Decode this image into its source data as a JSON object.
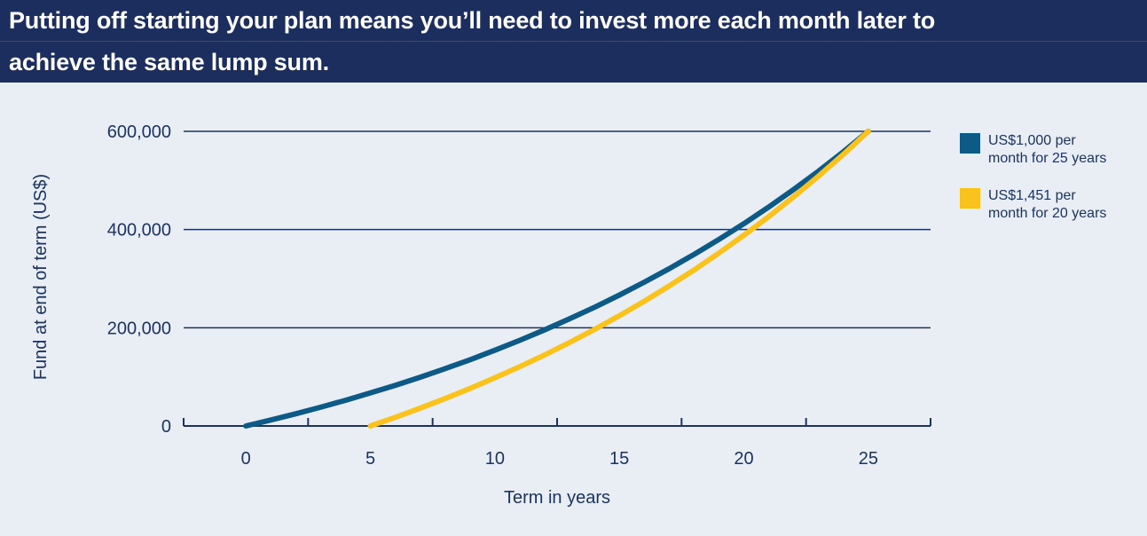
{
  "header": {
    "title": "Putting off starting your plan means you’ll need to invest more each month later to achieve the same lump sum.",
    "title_lines": [
      "Putting off starting your plan means you’ll need to invest more each month later to",
      "achieve the same lump sum."
    ]
  },
  "colors": {
    "header_bg": "#1c2e5e",
    "header_text": "#ffffff",
    "background": "#e9eef4",
    "axis": "#1c3361",
    "series_blue": "#0e5a86",
    "series_yellow": "#f9c21d"
  },
  "chart_data": {
    "type": "line",
    "title": "",
    "xlabel": "Term in years",
    "ylabel": "Fund at end of term (US$)",
    "x_ticks": [
      0,
      5,
      10,
      15,
      20,
      25
    ],
    "y_ticks": [
      0,
      200000,
      400000,
      600000
    ],
    "y_tick_labels": [
      "0",
      "200,000",
      "400,000",
      "600,000"
    ],
    "xlim": [
      -2.5,
      27.5
    ],
    "ylim": [
      0,
      600000
    ],
    "grid": "horizontal",
    "legend_position": "right",
    "series": [
      {
        "name": "US$1,000 per month for 25 years",
        "label_lines": [
          "US$1,000 per",
          "month for 25 years"
        ],
        "color": "#0e5a86",
        "x": [
          0,
          1,
          2,
          3,
          4,
          5,
          6,
          7,
          8,
          9,
          10,
          11,
          12,
          13,
          14,
          15,
          16,
          17,
          18,
          19,
          20,
          21,
          22,
          23,
          24,
          25
        ],
        "y": [
          0,
          12100,
          24800,
          38200,
          52300,
          67200,
          82800,
          99300,
          116700,
          134900,
          154100,
          174400,
          195700,
          218100,
          241700,
          266500,
          292700,
          320300,
          349300,
          379800,
          411900,
          445800,
          481400,
          518900,
          558400,
          600000
        ]
      },
      {
        "name": "US$1,451 per month for 20 years",
        "label_lines": [
          "US$1,451 per",
          "month for 20 years"
        ],
        "color": "#f9c21d",
        "x": [
          5,
          6,
          7,
          8,
          9,
          10,
          11,
          12,
          13,
          14,
          15,
          16,
          17,
          18,
          19,
          20,
          21,
          22,
          23,
          24,
          25
        ],
        "y": [
          0,
          17600,
          36200,
          55700,
          76200,
          97900,
          120700,
          144600,
          169900,
          196500,
          224500,
          253900,
          285000,
          317600,
          352000,
          388200,
          426300,
          466500,
          508700,
          553200,
          600000
        ]
      }
    ]
  }
}
